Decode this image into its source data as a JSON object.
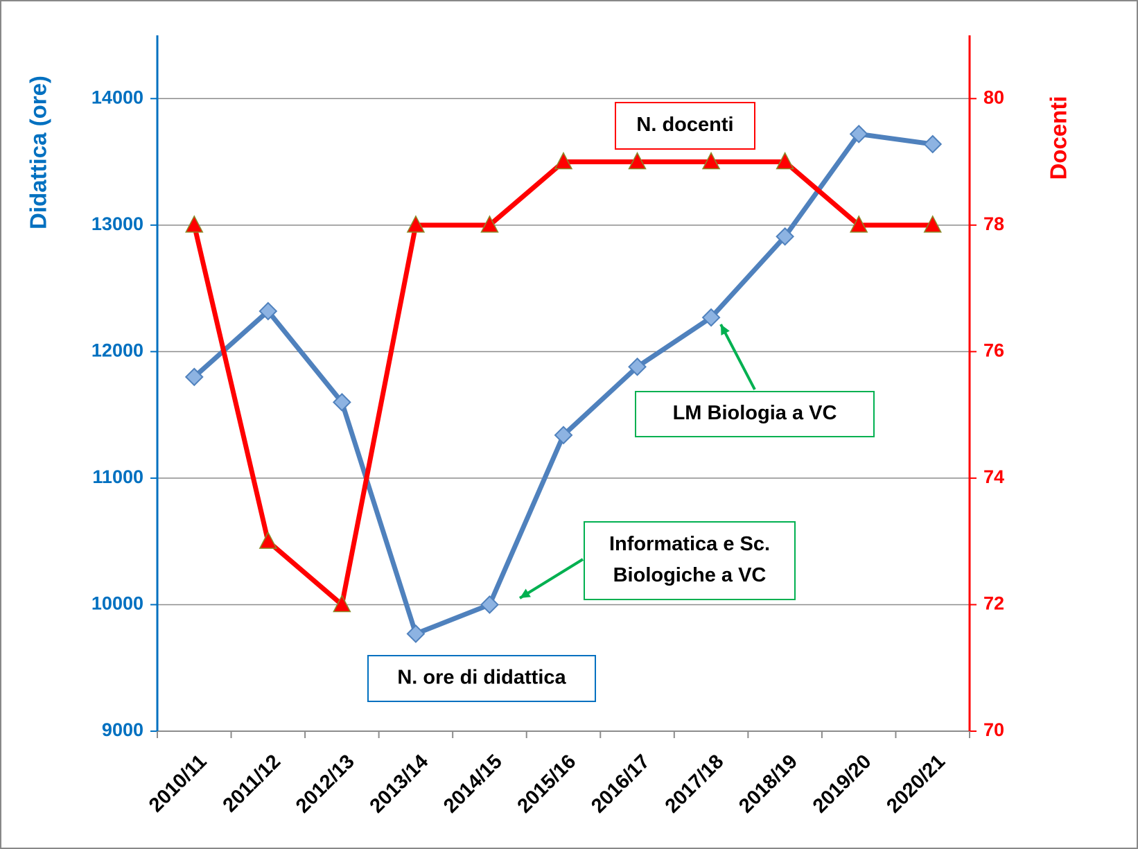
{
  "chart_data": {
    "type": "line",
    "categories": [
      "2010/11",
      "2011/12",
      "2012/13",
      "2013/14",
      "2014/15",
      "2015/16",
      "2016/17",
      "2017/18",
      "2018/19",
      "2019/20",
      "2020/21"
    ],
    "series": [
      {
        "name": "N. ore di didattica",
        "color": "#4f81bd",
        "marker_color": "#8db3e2",
        "values": [
          11800,
          12320,
          11600,
          9770,
          10000,
          11340,
          11880,
          12270,
          12910,
          13720,
          13640
        ]
      },
      {
        "name": "N. docenti",
        "color": "#ff0000",
        "axis": "y2",
        "values": [
          78,
          73,
          72,
          78,
          78,
          79,
          79,
          79,
          79,
          78,
          78
        ]
      }
    ],
    "ylabel": "Didattica (ore)",
    "y2label": "Docenti",
    "ylim": [
      9000,
      14500
    ],
    "yticks": [
      9000,
      10000,
      11000,
      12000,
      13000,
      14000
    ],
    "y2lim": [
      70,
      81
    ],
    "y2ticks": [
      70,
      72,
      74,
      76,
      78,
      80
    ],
    "grid": true,
    "annotations": [
      {
        "lines": [
          "LM  Biologia a VC"
        ]
      },
      {
        "lines": [
          "Informatica e Sc.",
          "Biologiche a VC"
        ]
      }
    ]
  }
}
